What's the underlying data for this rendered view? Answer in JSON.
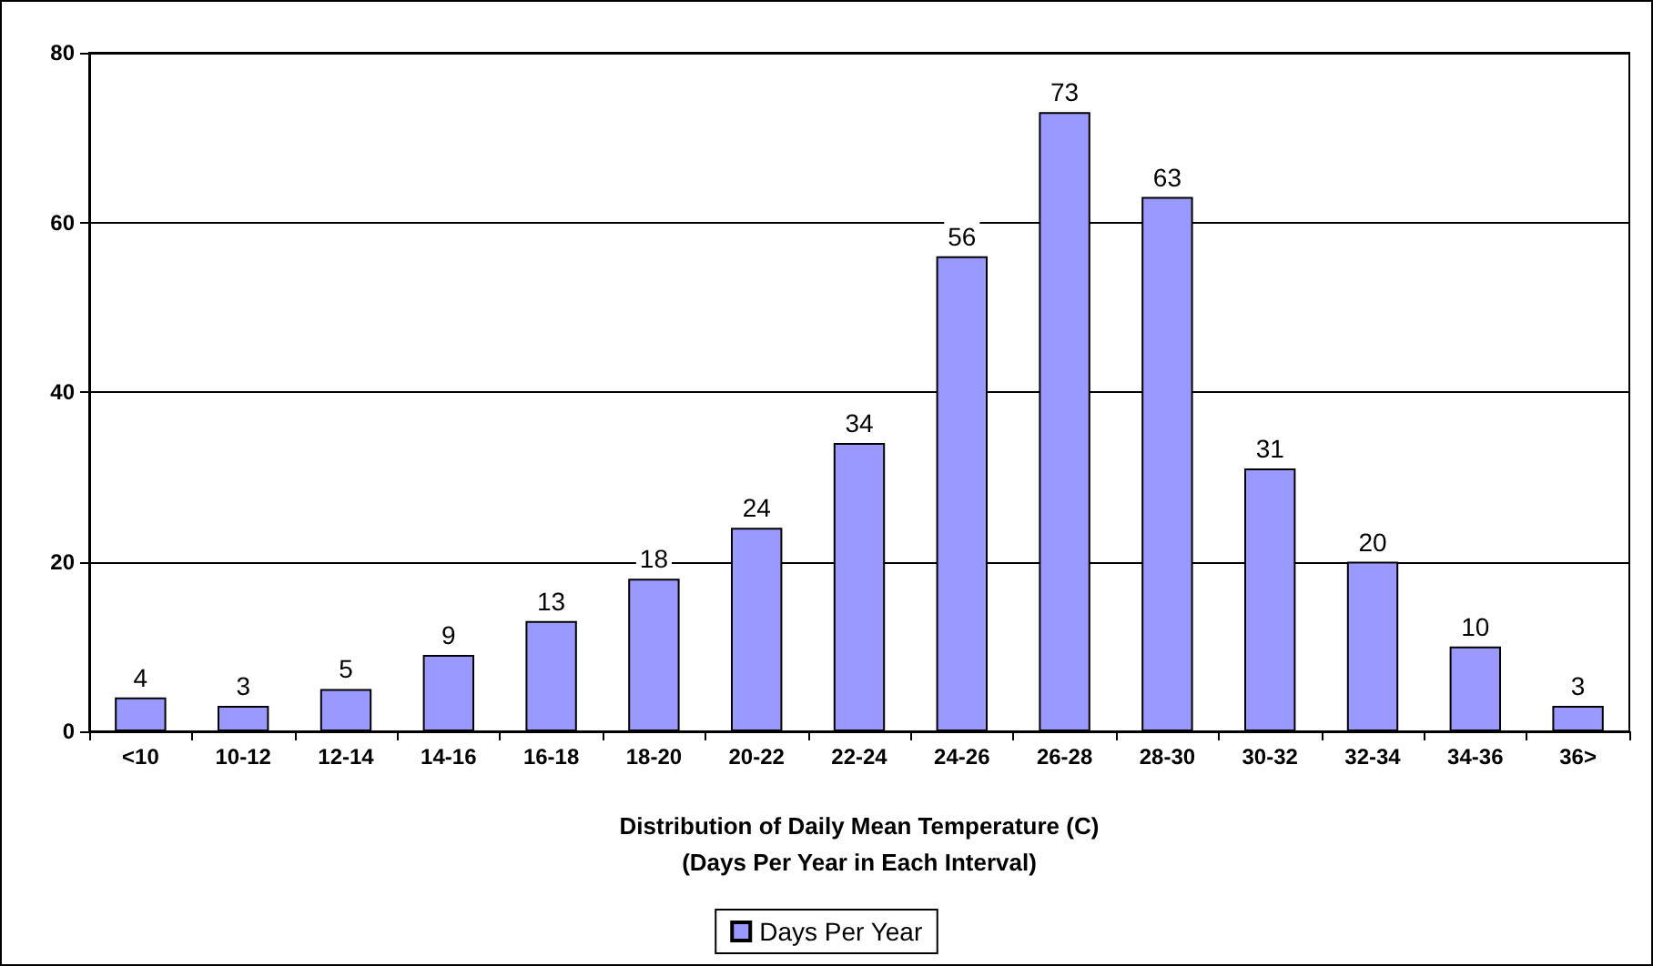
{
  "chart_data": {
    "type": "bar",
    "xlabel": "Distribution of Daily Mean Temperature (C)\n(Days Per Year in Each Interval)",
    "categories": [
      "<10",
      "10-12",
      "12-14",
      "14-16",
      "16-18",
      "18-20",
      "20-22",
      "22-24",
      "24-26",
      "26-28",
      "28-30",
      "30-32",
      "32-34",
      "34-36",
      "36>"
    ],
    "series": [
      {
        "name": "Days Per Year",
        "color": "#9999ff",
        "values": [
          4,
          3,
          5,
          9,
          13,
          18,
          24,
          34,
          56,
          73,
          63,
          31,
          20,
          10,
          3
        ]
      }
    ],
    "ylim": [
      0,
      80
    ],
    "yticks": [
      0,
      20,
      40,
      60,
      80
    ],
    "grid": "y",
    "legend": "bottom",
    "data_labels": true
  }
}
